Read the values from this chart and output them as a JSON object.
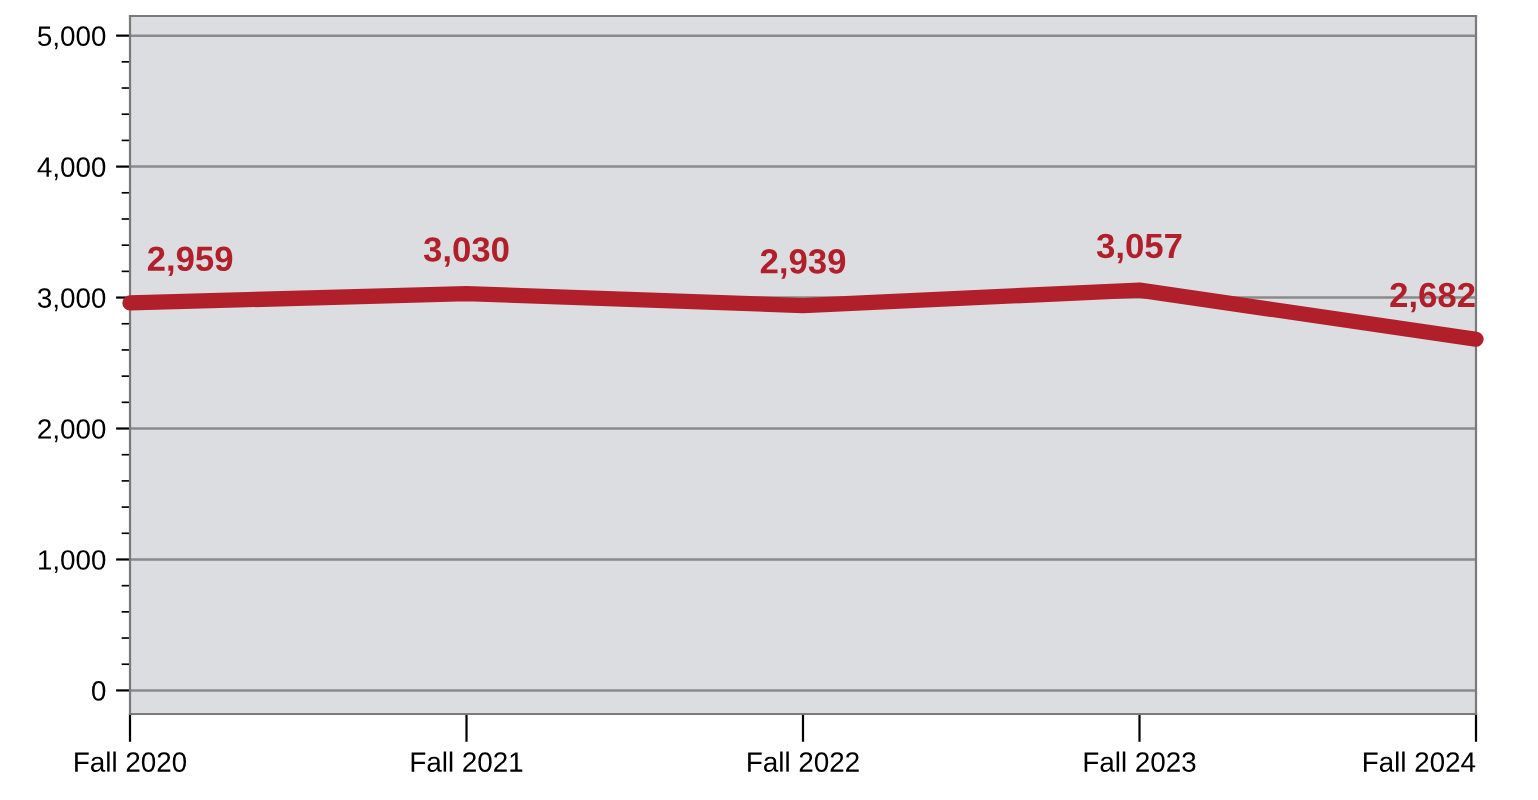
{
  "chart_data": {
    "type": "line",
    "categories": [
      "Fall 2020",
      "Fall 2021",
      "Fall 2022",
      "Fall 2023",
      "Fall 2024"
    ],
    "series": [
      {
        "color": "#b11f2b",
        "values": [
          2959,
          3030,
          2939,
          3057,
          2682
        ],
        "value_labels": [
          "2,959",
          "3,030",
          "2,939",
          "3,057",
          "2,682"
        ]
      }
    ],
    "ylim": [
      -180,
      5150
    ],
    "yticks": [
      {
        "value": 0,
        "label": "0"
      },
      {
        "value": 1000,
        "label": "1,000"
      },
      {
        "value": 2000,
        "label": "2,000"
      },
      {
        "value": 3000,
        "label": "3,000"
      },
      {
        "value": 4000,
        "label": "4,000"
      },
      {
        "value": 5000,
        "label": "5,000"
      }
    ],
    "grid": "y",
    "marker": "none",
    "line_style": "solid"
  }
}
